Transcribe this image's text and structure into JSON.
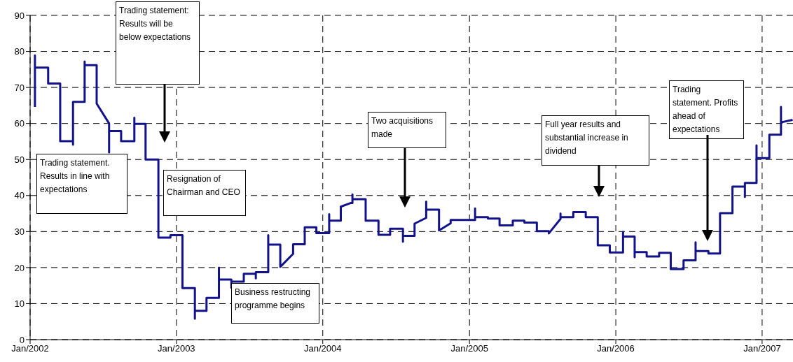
{
  "chart_data": {
    "type": "line",
    "x": [
      "2002-01-13",
      "2002-01-13",
      "2002-01-13",
      "2002-02-15",
      "2002-02-15",
      "2002-03-17",
      "2002-03-17",
      "2002-04-18",
      "2002-04-18",
      "2002-04-18",
      "2002-05-17",
      "2002-05-17",
      "2002-05-17",
      "2002-06-16",
      "2002-06-16",
      "2002-07-17",
      "2002-07-17",
      "2002-07-17",
      "2002-08-16",
      "2002-08-16",
      "2002-09-18",
      "2002-09-18",
      "2002-09-18",
      "2002-10-16",
      "2002-10-16",
      "2002-11-17",
      "2002-11-17",
      "2002-12-17",
      "2002-12-17",
      "2003-01-16",
      "2003-01-16",
      "2003-02-16",
      "2003-02-16",
      "2003-02-16",
      "2003-03-17",
      "2003-03-17",
      "2003-04-17",
      "2003-04-17",
      "2003-04-17",
      "2003-05-18",
      "2003-05-18",
      "2003-05-18",
      "2003-06-18",
      "2003-06-18",
      "2003-07-18",
      "2003-07-18",
      "2003-07-18",
      "2003-08-18",
      "2003-08-18",
      "2003-08-18",
      "2003-09-17",
      "2003-09-17",
      "2003-10-19",
      "2003-10-19",
      "2003-11-17",
      "2003-11-17",
      "2003-12-16",
      "2003-12-16",
      "2004-01-17",
      "2004-01-17",
      "2004-01-17",
      "2004-02-15",
      "2004-02-15",
      "2004-03-10",
      "2004-03-15",
      "2004-03-15",
      "2004-03-15",
      "2004-04-17",
      "2004-04-17",
      "2004-05-19",
      "2004-05-19",
      "2004-06-17",
      "2004-06-17",
      "2004-07-19",
      "2004-07-19",
      "2004-07-19",
      "2004-08-17",
      "2004-08-17",
      "2004-09-15",
      "2004-09-15",
      "2004-09-15",
      "2004-10-17",
      "2004-10-17",
      "2004-11-15",
      "2004-11-15",
      "2005-01-15",
      "2005-01-15",
      "2005-01-15",
      "2005-02-16",
      "2005-02-16",
      "2005-03-17",
      "2005-03-17",
      "2005-04-19",
      "2005-04-19",
      "2005-05-18",
      "2005-05-18",
      "2005-06-18",
      "2005-06-18",
      "2005-07-18",
      "2005-07-18",
      "2005-08-16",
      "2005-08-16",
      "2005-08-16",
      "2005-09-17",
      "2005-09-17",
      "2005-10-18",
      "2005-10-18",
      "2005-11-17",
      "2005-11-17",
      "2005-12-17",
      "2005-12-17",
      "2006-01-19",
      "2006-01-19",
      "2006-01-19",
      "2006-02-17",
      "2006-02-17",
      "2006-02-17",
      "2006-03-19",
      "2006-03-19",
      "2006-04-19",
      "2006-04-19",
      "2006-05-18",
      "2006-05-18",
      "2006-06-19",
      "2006-06-19",
      "2006-07-19",
      "2006-07-19",
      "2006-07-19",
      "2006-08-20",
      "2006-08-20",
      "2006-09-18",
      "2006-09-18",
      "2006-10-19",
      "2006-10-19",
      "2006-11-19",
      "2006-11-19",
      "2006-11-19",
      "2006-12-18",
      "2006-12-18",
      "2006-12-18",
      "2007-01-19",
      "2007-01-19",
      "2007-02-17",
      "2007-02-17",
      "2007-02-17",
      "2007-03-18"
    ],
    "values": [
      64.6,
      78.9,
      75.5,
      75.5,
      71.1,
      71.1,
      55.1,
      55.1,
      54.1,
      66,
      66,
      77.2,
      76.2,
      76.2,
      65.5,
      60,
      52,
      57.9,
      57.9,
      55.1,
      55.1,
      61.6,
      59.9,
      59.9,
      50,
      50,
      28.3,
      28.3,
      29,
      29,
      14.3,
      14.3,
      5.8,
      8,
      8,
      11.6,
      11.6,
      20,
      16.7,
      16.7,
      14.4,
      16.1,
      16.1,
      18.3,
      18.3,
      17,
      18.7,
      18.7,
      29,
      26.4,
      26.4,
      20.2,
      23.8,
      26.5,
      26.5,
      31.2,
      31.2,
      29.6,
      29.6,
      34.8,
      33,
      33,
      36.9,
      37.9,
      37.9,
      40.3,
      39,
      39,
      33,
      33,
      29.1,
      29.1,
      30.8,
      30.8,
      27.2,
      28.8,
      28.8,
      32.2,
      33.8,
      38.3,
      36.1,
      36.1,
      30.3,
      32.3,
      33.2,
      33.2,
      36.4,
      34,
      34,
      33.6,
      33.6,
      31.7,
      31.7,
      33,
      33,
      32.5,
      32.5,
      30.1,
      30.1,
      29.5,
      33.5,
      35,
      34,
      34,
      35.4,
      35.4,
      34,
      34,
      26.2,
      26.2,
      24.2,
      24.2,
      29.9,
      28.6,
      28.6,
      22.9,
      24.3,
      24.3,
      23.1,
      23.1,
      24.1,
      24.1,
      19.6,
      19.6,
      22,
      22,
      27,
      24.6,
      24.6,
      23.9,
      23.9,
      35.1,
      35.1,
      42.5,
      42.5,
      39.6,
      43.5,
      43.5,
      53.9,
      50.4,
      50.4,
      56.9,
      56.9,
      64.6,
      60.3,
      61
    ],
    "color": "#12128a",
    "marker": "none",
    "xlim": [
      "2002-01-01",
      "2007-03-19"
    ],
    "xticks": [
      {
        "value": "2002-01-01",
        "label": "Jan/2002"
      },
      {
        "value": "2003-01-01",
        "label": "Jan/2003"
      },
      {
        "value": "2004-01-01",
        "label": "Jan/2004"
      },
      {
        "value": "2005-01-01",
        "label": "Jan/2005"
      },
      {
        "value": "2006-01-01",
        "label": "Jan/2006"
      },
      {
        "value": "2007-01-01",
        "label": "Jan/2007"
      }
    ],
    "ylim": [
      0,
      90
    ],
    "yticks": [
      0,
      10,
      20,
      30,
      40,
      50,
      60,
      70,
      80,
      90
    ],
    "grid": true,
    "annotations": [
      "Trading statement. Results in line with expectations",
      "Trading statement: Results will be below expectations",
      "Resignation of Chairman and CEO",
      "Business restructing programme begins",
      "Two acquisitions made",
      "Full year results and substantial increase in dividend",
      "Trading statement. Profits ahead of expectations"
    ]
  }
}
